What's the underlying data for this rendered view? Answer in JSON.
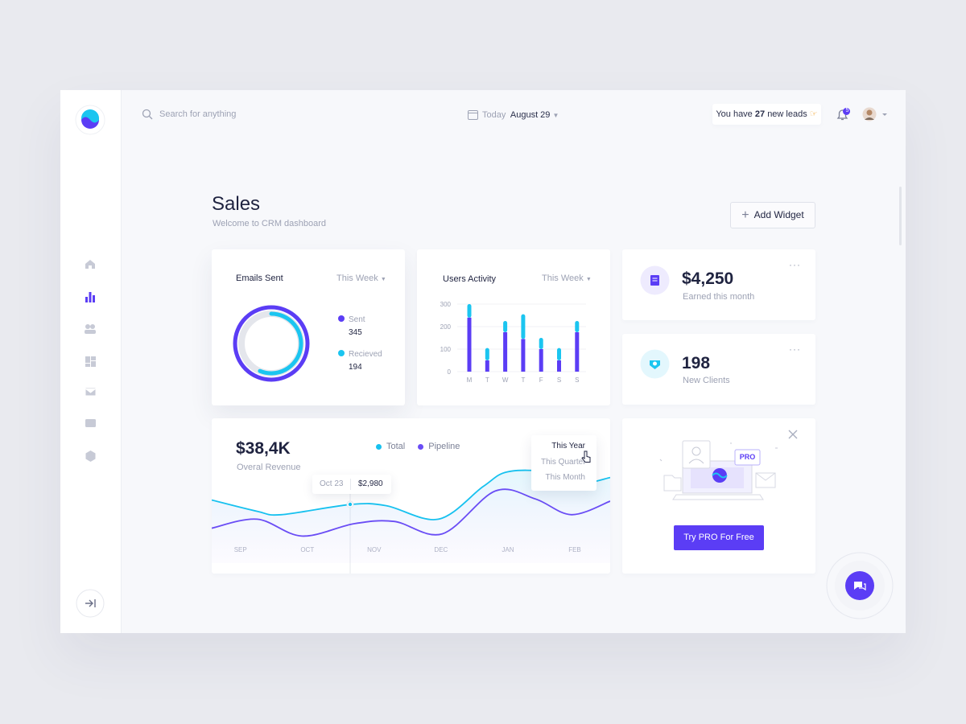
{
  "topbar": {
    "search_placeholder": "Search for anything",
    "date_prefix": "Today",
    "date": "August 29",
    "leads": {
      "prefix": "You have",
      "count": 27,
      "suffix": "new leads"
    },
    "notification_count": 5
  },
  "header": {
    "title": "Sales",
    "subtitle": "Welcome to CRM dashboard",
    "add_button": "Add Widget"
  },
  "emails_card": {
    "title": "Emails Sent",
    "period": "This Week",
    "chart_data": {
      "type": "donut",
      "series": [
        {
          "name": "Sent",
          "value": 345,
          "color": "#5b3df5"
        },
        {
          "name": "Recieved",
          "value": 194,
          "color": "#1bc5f0"
        }
      ]
    }
  },
  "activity_card": {
    "title": "Users Activity",
    "period": "This Week",
    "chart_data": {
      "type": "bar",
      "stacked": true,
      "categories": [
        "M",
        "T",
        "W",
        "T",
        "F",
        "S",
        "S"
      ],
      "series": [
        {
          "color": "#5b3df5",
          "values": [
            240,
            50,
            175,
            145,
            100,
            50,
            175
          ]
        },
        {
          "color": "#1bc5f0",
          "values": [
            60,
            55,
            50,
            110,
            50,
            55,
            50
          ]
        }
      ],
      "ylim": [
        0,
        300
      ],
      "yticks": [
        0,
        100,
        200,
        300
      ],
      "grid": true
    }
  },
  "stats": [
    {
      "value": "$4,250",
      "label": "Earned this month"
    },
    {
      "value": 198,
      "label": "New Clients"
    }
  ],
  "revenue_card": {
    "value": "$38,4K",
    "label": "Overal Revenue",
    "periods": [
      "This Year",
      "This Quarter",
      "This Month"
    ],
    "tooltip": {
      "date": "Oct 23",
      "value": "$2,980"
    },
    "chart_data": {
      "type": "line",
      "smooth": true,
      "xlim": [
        -0.43,
        5.53
      ],
      "ylim": [
        0,
        100
      ],
      "xticks": [
        {
          "value": 0,
          "label": "SEP"
        },
        {
          "value": 1,
          "label": "OCT"
        },
        {
          "value": 2,
          "label": "NOV"
        },
        {
          "value": 3,
          "label": "DEC"
        },
        {
          "value": 4,
          "label": "JAN"
        },
        {
          "value": 5,
          "label": "FEB"
        }
      ],
      "series": [
        {
          "name": "Total",
          "color": "#17c1ef",
          "x": [
            -0.43,
            0.25,
            0.61,
            1.64,
            2.18,
            2.96,
            3.63,
            3.99,
            4.59,
            5.07,
            5.53
          ],
          "values": [
            56,
            46,
            43,
            52,
            51,
            39,
            68,
            81,
            81,
            71,
            76
          ]
        },
        {
          "name": "Pipeline",
          "color": "#6a4df5",
          "x": [
            -0.43,
            0.25,
            0.92,
            1.7,
            2.3,
            3.02,
            3.81,
            4.41,
            4.95,
            5.53
          ],
          "values": [
            31,
            39,
            24,
            35,
            37,
            26,
            64,
            57,
            43,
            55
          ]
        }
      ]
    }
  },
  "pro_card": {
    "badge": "PRO",
    "button": "Try PRO For Free"
  }
}
